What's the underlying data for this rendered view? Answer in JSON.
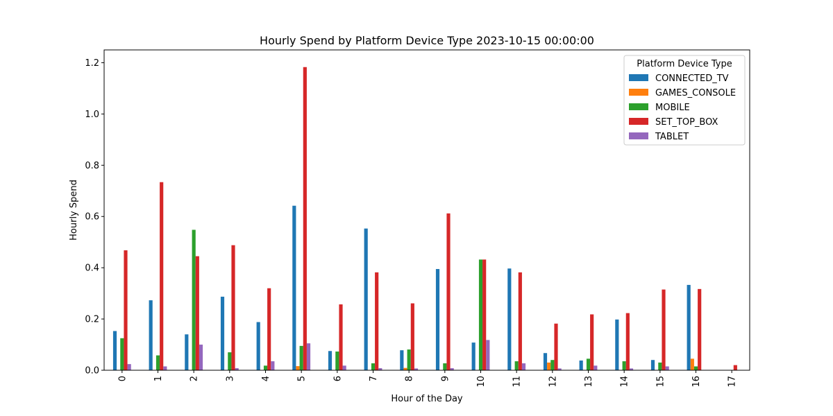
{
  "chart_data": {
    "type": "bar",
    "title": "Hourly Spend by Platform Device Type 2023-10-15 00:00:00",
    "xlabel": "Hour of the Day",
    "ylabel": "Hourly Spend",
    "ylim": [
      0,
      1.25
    ],
    "yticks": [
      0.0,
      0.2,
      0.4,
      0.6,
      0.8,
      1.0,
      1.2
    ],
    "ytick_labels": [
      "0.0",
      "0.2",
      "0.4",
      "0.6",
      "0.8",
      "1.0",
      "1.2"
    ],
    "grid": false,
    "legend": {
      "title": "Platform Device Type",
      "placement": "top-right"
    },
    "categories": [
      "0",
      "1",
      "2",
      "3",
      "4",
      "5",
      "6",
      "7",
      "8",
      "9",
      "10",
      "11",
      "12",
      "13",
      "14",
      "15",
      "16",
      "17"
    ],
    "series": [
      {
        "name": "CONNECTED_TV",
        "color": "#1f77b4",
        "values": [
          0.153,
          0.273,
          0.14,
          0.287,
          0.188,
          0.642,
          0.075,
          0.553,
          0.078,
          0.395,
          0.108,
          0.397,
          0.067,
          0.038,
          0.198,
          0.04,
          0.333,
          0
        ]
      },
      {
        "name": "GAMES_CONSOLE",
        "color": "#ff7f0e",
        "values": [
          0,
          0,
          0,
          0,
          0,
          0.016,
          0,
          0,
          0.009,
          0,
          0,
          0,
          0.03,
          0,
          0,
          0,
          0.045,
          0
        ]
      },
      {
        "name": "MOBILE",
        "color": "#2ca02c",
        "values": [
          0.125,
          0.058,
          0.548,
          0.07,
          0.018,
          0.095,
          0.073,
          0.027,
          0.081,
          0.027,
          0.432,
          0.035,
          0.04,
          0.045,
          0.035,
          0.03,
          0.015,
          0
        ]
      },
      {
        "name": "SET_TOP_BOX",
        "color": "#d62728",
        "values": [
          0.468,
          0.734,
          0.445,
          0.488,
          0.32,
          1.183,
          0.257,
          0.382,
          0.261,
          0.612,
          0.432,
          0.382,
          0.182,
          0.218,
          0.223,
          0.315,
          0.317,
          0.02
        ]
      },
      {
        "name": "TABLET",
        "color": "#9467bd",
        "values": [
          0.024,
          0.015,
          0.1,
          0.008,
          0.035,
          0.105,
          0.018,
          0.008,
          0.007,
          0.008,
          0.118,
          0.027,
          0.007,
          0.018,
          0.007,
          0.015,
          0,
          0
        ]
      }
    ]
  }
}
